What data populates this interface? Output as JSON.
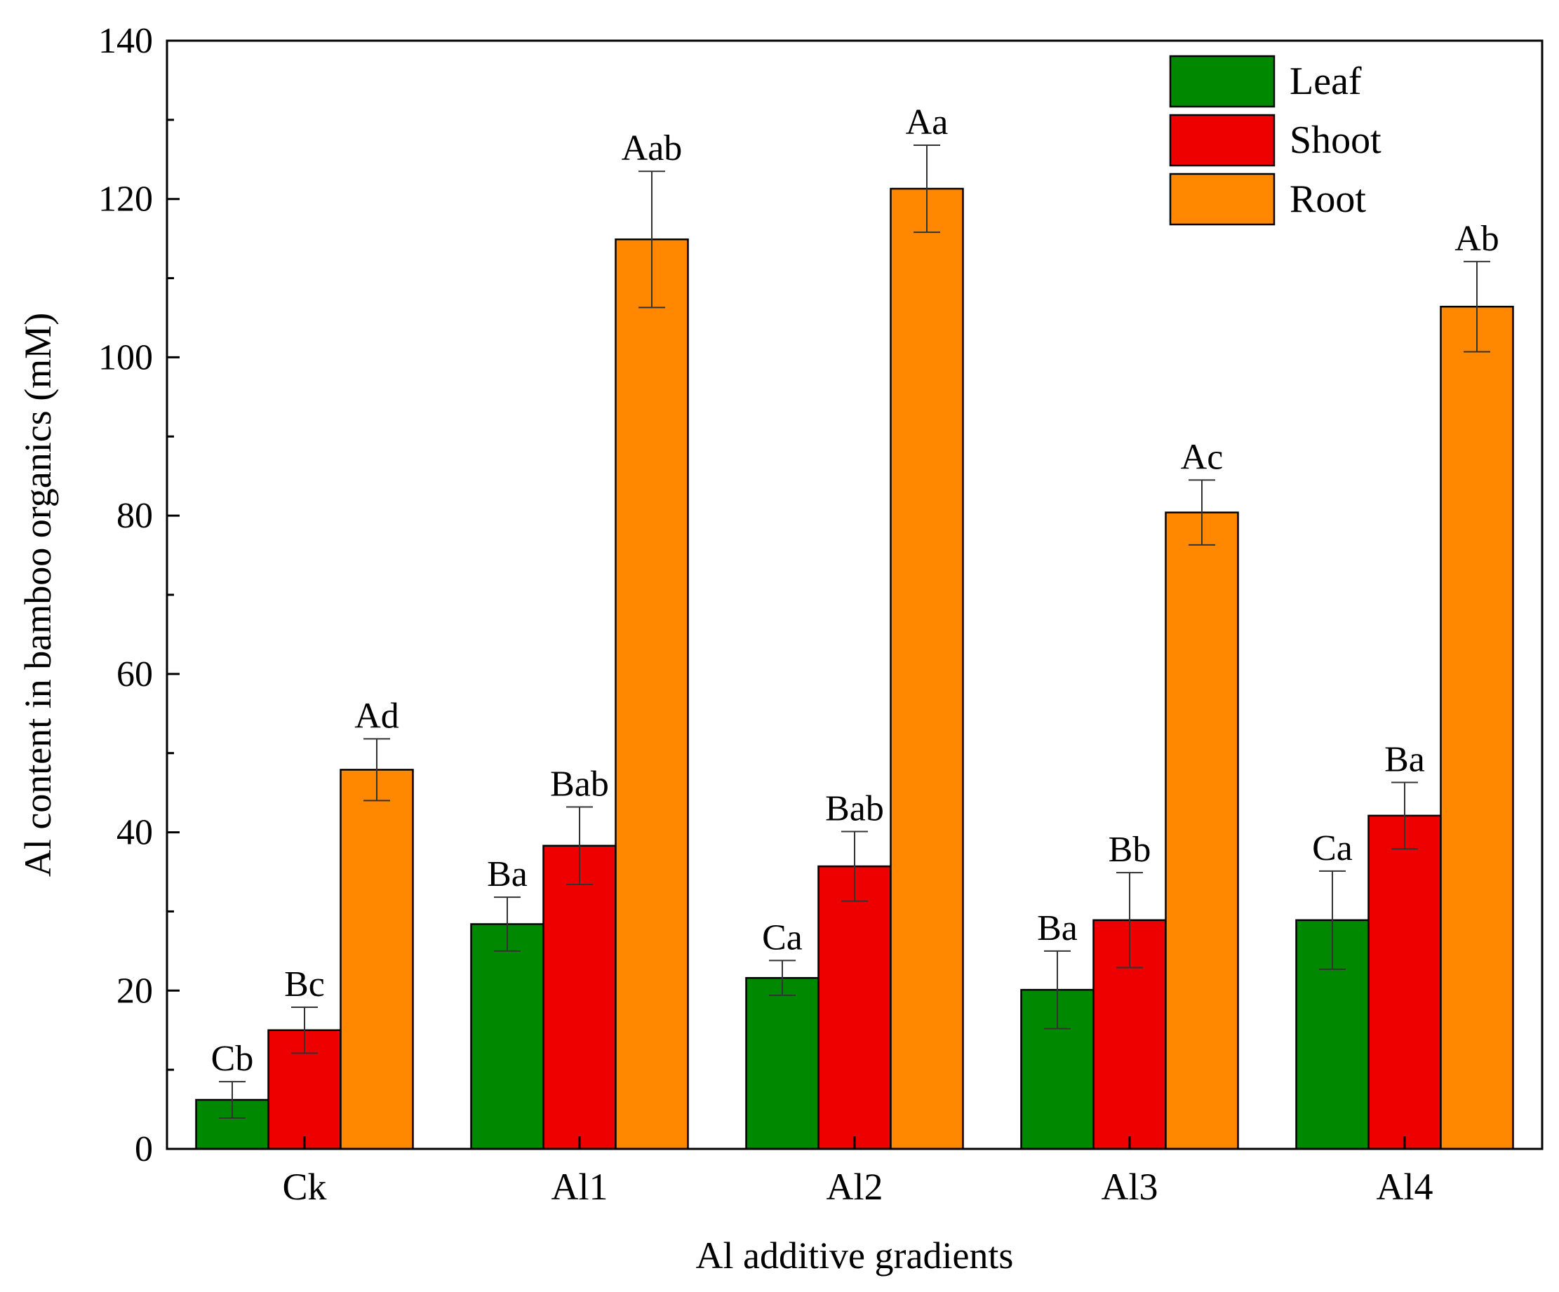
{
  "chart_data": {
    "type": "bar",
    "title": "",
    "xlabel": "Al additive gradients",
    "ylabel": "Al content in bamboo organics (mM)",
    "ylim": [
      0,
      140
    ],
    "yticks": [
      0,
      20,
      40,
      60,
      80,
      100,
      120,
      140
    ],
    "categories": [
      "Ck",
      "Al1",
      "Al2",
      "Al3",
      "Al4"
    ],
    "legend_position": "top-right",
    "series": [
      {
        "name": "Leaf",
        "color": "#008800",
        "values": [
          6.2,
          28.4,
          21.6,
          20.1,
          28.9
        ],
        "errors": [
          2.3,
          3.4,
          2.2,
          4.9,
          6.2
        ],
        "labels": [
          "Cb",
          "Ba",
          "Ca",
          "Ba",
          "Ca"
        ]
      },
      {
        "name": "Shoot",
        "color": "#ee0000",
        "values": [
          15.0,
          38.3,
          35.7,
          28.9,
          42.1
        ],
        "errors": [
          2.9,
          4.9,
          4.4,
          6.0,
          4.2
        ],
        "labels": [
          "Bc",
          "Bab",
          "Bab",
          "Bb",
          "Ba"
        ]
      },
      {
        "name": "Root",
        "color": "#ff8800",
        "values": [
          47.9,
          114.9,
          121.3,
          80.4,
          106.4
        ],
        "errors": [
          3.9,
          8.6,
          5.5,
          4.1,
          5.7
        ],
        "labels": [
          "Ad",
          "Aab",
          "Aa",
          "Ac",
          "Ab"
        ]
      }
    ]
  }
}
